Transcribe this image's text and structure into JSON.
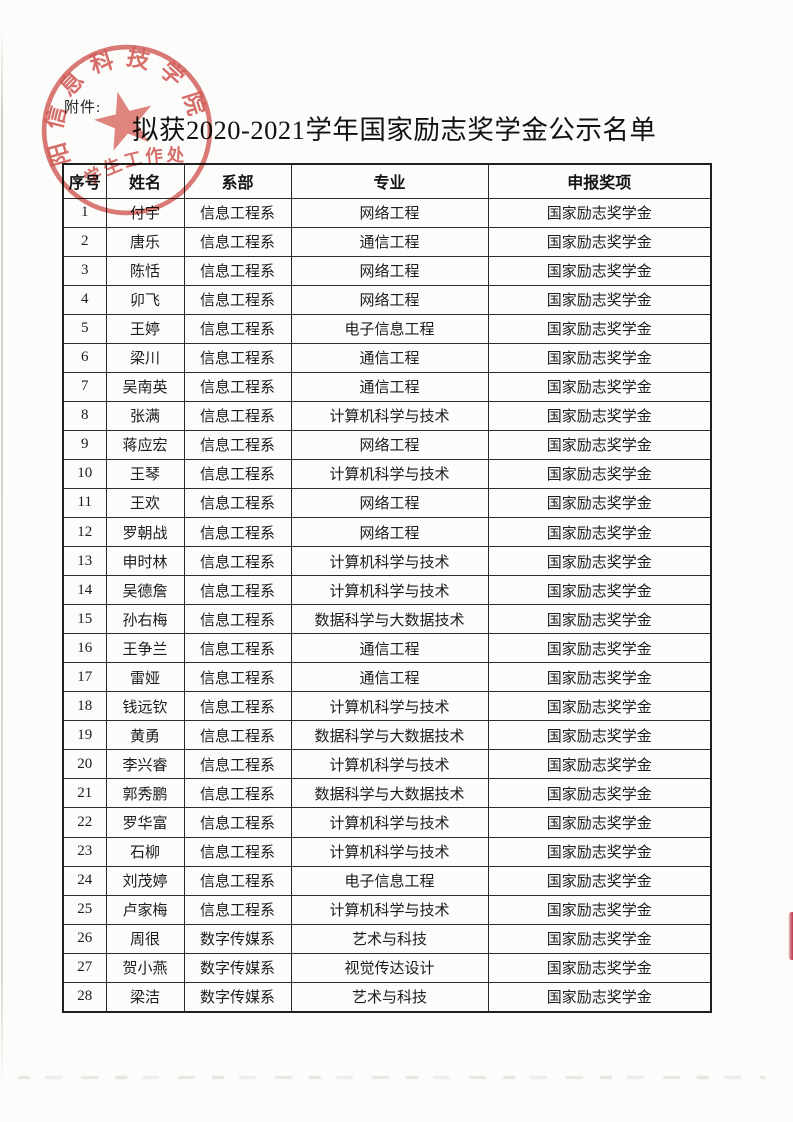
{
  "page": {
    "attachment_label": "附件:",
    "title": "拟获2020-2021学年国家励志奖学金公示名单"
  },
  "stamp": {
    "ring_text": "阳信息科技学院",
    "bottom_text": "学生工作处",
    "ring_color": "#d0514c",
    "star_color": "#d85a54"
  },
  "artifacts": {
    "red_edge_mark_color": "#bd3b4d"
  },
  "table": {
    "headers": [
      "序号",
      "姓名",
      "系部",
      "专业",
      "申报奖项"
    ],
    "rows": [
      [
        "1",
        "付宇",
        "信息工程系",
        "网络工程",
        "国家励志奖学金"
      ],
      [
        "2",
        "唐乐",
        "信息工程系",
        "通信工程",
        "国家励志奖学金"
      ],
      [
        "3",
        "陈恬",
        "信息工程系",
        "网络工程",
        "国家励志奖学金"
      ],
      [
        "4",
        "卯飞",
        "信息工程系",
        "网络工程",
        "国家励志奖学金"
      ],
      [
        "5",
        "王婷",
        "信息工程系",
        "电子信息工程",
        "国家励志奖学金"
      ],
      [
        "6",
        "梁川",
        "信息工程系",
        "通信工程",
        "国家励志奖学金"
      ],
      [
        "7",
        "吴南英",
        "信息工程系",
        "通信工程",
        "国家励志奖学金"
      ],
      [
        "8",
        "张满",
        "信息工程系",
        "计算机科学与技术",
        "国家励志奖学金"
      ],
      [
        "9",
        "蒋应宏",
        "信息工程系",
        "网络工程",
        "国家励志奖学金"
      ],
      [
        "10",
        "王琴",
        "信息工程系",
        "计算机科学与技术",
        "国家励志奖学金"
      ],
      [
        "11",
        "王欢",
        "信息工程系",
        "网络工程",
        "国家励志奖学金"
      ],
      [
        "12",
        "罗朝战",
        "信息工程系",
        "网络工程",
        "国家励志奖学金"
      ],
      [
        "13",
        "申时林",
        "信息工程系",
        "计算机科学与技术",
        "国家励志奖学金"
      ],
      [
        "14",
        "吴德詹",
        "信息工程系",
        "计算机科学与技术",
        "国家励志奖学金"
      ],
      [
        "15",
        "孙右梅",
        "信息工程系",
        "数据科学与大数据技术",
        "国家励志奖学金"
      ],
      [
        "16",
        "王争兰",
        "信息工程系",
        "通信工程",
        "国家励志奖学金"
      ],
      [
        "17",
        "雷娅",
        "信息工程系",
        "通信工程",
        "国家励志奖学金"
      ],
      [
        "18",
        "钱远钦",
        "信息工程系",
        "计算机科学与技术",
        "国家励志奖学金"
      ],
      [
        "19",
        "黄勇",
        "信息工程系",
        "数据科学与大数据技术",
        "国家励志奖学金"
      ],
      [
        "20",
        "李兴睿",
        "信息工程系",
        "计算机科学与技术",
        "国家励志奖学金"
      ],
      [
        "21",
        "郭秀鹏",
        "信息工程系",
        "数据科学与大数据技术",
        "国家励志奖学金"
      ],
      [
        "22",
        "罗华富",
        "信息工程系",
        "计算机科学与技术",
        "国家励志奖学金"
      ],
      [
        "23",
        "石柳",
        "信息工程系",
        "计算机科学与技术",
        "国家励志奖学金"
      ],
      [
        "24",
        "刘茂婷",
        "信息工程系",
        "电子信息工程",
        "国家励志奖学金"
      ],
      [
        "25",
        "卢家梅",
        "信息工程系",
        "计算机科学与技术",
        "国家励志奖学金"
      ],
      [
        "26",
        "周很",
        "数字传媒系",
        "艺术与科技",
        "国家励志奖学金"
      ],
      [
        "27",
        "贺小燕",
        "数字传媒系",
        "视觉传达设计",
        "国家励志奖学金"
      ],
      [
        "28",
        "梁洁",
        "数字传媒系",
        "艺术与科技",
        "国家励志奖学金"
      ]
    ]
  }
}
